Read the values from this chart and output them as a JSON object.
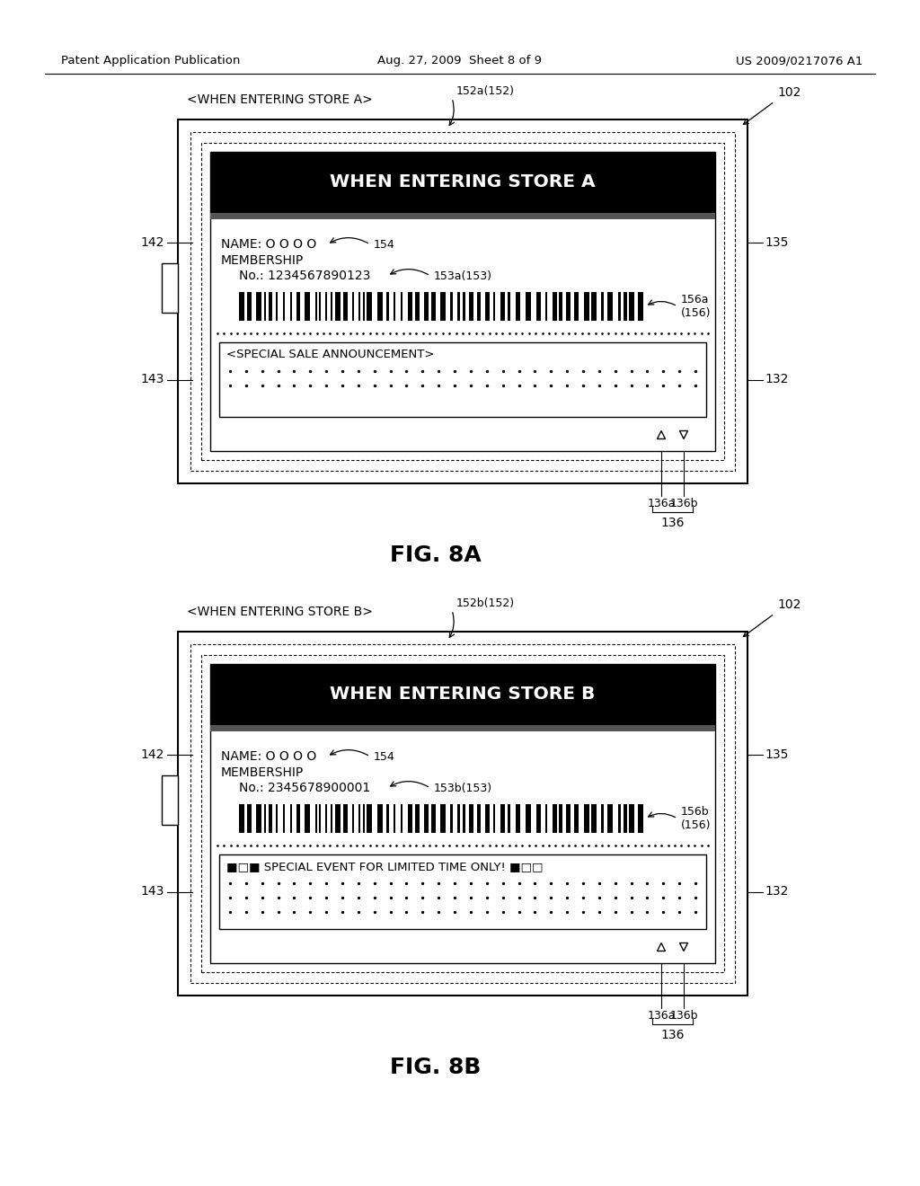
{
  "bg_color": "#ffffff",
  "header_left": "Patent Application Publication",
  "header_center": "Aug. 27, 2009  Sheet 8 of 9",
  "header_right": "US 2009/0217076 A1",
  "fig_a": {
    "label": "FIG. 8A",
    "store_label": "<WHEN ENTERING STORE A>",
    "store_label_ref": "152a(152)",
    "outer_ref": "102",
    "inner_ref_left": "142",
    "inner_ref_right": "135",
    "lower_ref": "132",
    "lower_left_ref": "143",
    "arrow_ref_left": "136a",
    "arrow_ref_right": "136b",
    "arrow_ref_bottom": "136",
    "header_text": "WHEN ENTERING STORE A",
    "name_text": "NAME: O O O O",
    "name_ref": "154",
    "membership_text": "MEMBERSHIP",
    "no_text": "No.: 1234567890123",
    "no_ref": "153a(153)",
    "barcode_ref": "156a\n(156)",
    "announce_text": "<SPECIAL SALE ANNOUNCEMENT>",
    "dots_rows": 2
  },
  "fig_b": {
    "label": "FIG. 8B",
    "store_label": "<WHEN ENTERING STORE B>",
    "store_label_ref": "152b(152)",
    "outer_ref": "102",
    "inner_ref_left": "142",
    "inner_ref_right": "135",
    "lower_ref": "132",
    "lower_left_ref": "143",
    "arrow_ref_left": "136a",
    "arrow_ref_right": "136b",
    "arrow_ref_bottom": "136",
    "header_text": "WHEN ENTERING STORE B",
    "name_text": "NAME: O O O O",
    "name_ref": "154",
    "membership_text": "MEMBERSHIP",
    "no_text": "No.: 2345678900001",
    "no_ref": "153b(153)",
    "barcode_ref": "156b\n(156)",
    "announce_text": "■□■ SPECIAL EVENT FOR LIMITED TIME ONLY! ■□□",
    "dots_rows": 3
  }
}
